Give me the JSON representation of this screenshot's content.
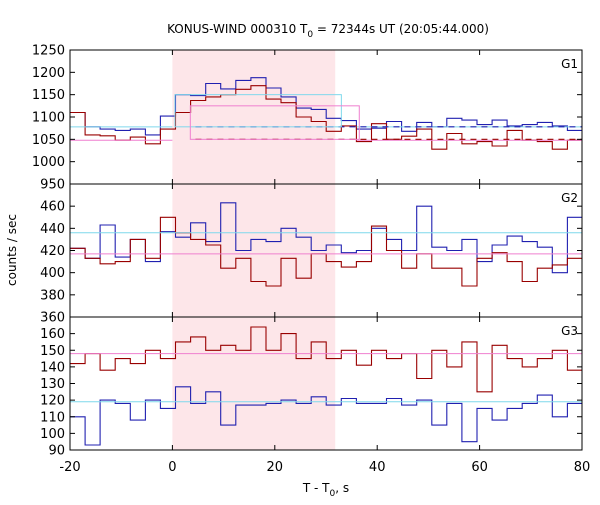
{
  "chart_data": {
    "type": "line",
    "title": "KONUS-WIND 000310 T",
    "title_sub": "0",
    "title_rest": " = 72344s UT (20:05:44.000)",
    "xlabel": "T - T",
    "xlabel_sub": "0",
    "xlabel_rest": ", s",
    "ylabel": "counts / sec",
    "xlim": [
      -20,
      80
    ],
    "x_ticks": [
      -20,
      0,
      20,
      40,
      60,
      80
    ],
    "bin_start": -20,
    "bin_width": 2.944,
    "shaded_interval": [
      0,
      31.8
    ],
    "colors": {
      "blue": "#2020b0",
      "red": "#990000",
      "cyan": "#7fd8ec",
      "pink": "#ef7fcf",
      "shade": "#fde6e9"
    },
    "panels": [
      {
        "label": "G1",
        "ylim": [
          950,
          1250
        ],
        "y_ticks": [
          950,
          1000,
          1050,
          1100,
          1150,
          1200,
          1250
        ],
        "series": [
          {
            "color": "blue",
            "values": [
              1110,
              1078,
              1073,
              1070,
              1073,
              1060,
              1102,
              1150,
              1148,
              1175,
              1163,
              1182,
              1188,
              1165,
              1145,
              1120,
              1117,
              1097,
              1092,
              1073,
              1075,
              1090,
              1068,
              1088,
              1078,
              1097,
              1093,
              1083,
              1093,
              1080,
              1083,
              1088,
              1080,
              1070,
              1063
            ]
          },
          {
            "color": "red",
            "values": [
              1110,
              1060,
              1058,
              1048,
              1055,
              1040,
              1073,
              1110,
              1137,
              1145,
              1150,
              1162,
              1170,
              1140,
              1132,
              1100,
              1090,
              1068,
              1080,
              1045,
              1085,
              1050,
              1057,
              1073,
              1028,
              1063,
              1040,
              1045,
              1035,
              1070,
              1048,
              1045,
              1028,
              1048,
              1045
            ]
          }
        ],
        "bg_fit": [
          {
            "color": "cyan",
            "x": [
              -20,
              0
            ],
            "y": 1078
          },
          {
            "color": "pink",
            "x": [
              -20,
              0
            ],
            "y": 1048
          },
          {
            "color": "cyan",
            "x": [
              36,
              80
            ],
            "y": 1078
          },
          {
            "color": "pink",
            "x": [
              36,
              80
            ],
            "y": 1048
          }
        ],
        "bg_dashed": [
          {
            "color": "blue",
            "x": [
              4.5,
              80
            ],
            "y": 1078
          },
          {
            "color": "red",
            "x": [
              4.5,
              80
            ],
            "y": 1050
          }
        ],
        "boxes": [
          {
            "color": "cyan",
            "x": [
              0.5,
              33
            ],
            "y": [
              1078,
              1150
            ]
          },
          {
            "color": "pink",
            "x": [
              3.5,
              36.5
            ],
            "y": [
              1050,
              1125
            ]
          }
        ]
      },
      {
        "label": "G2",
        "ylim": [
          360,
          480
        ],
        "y_ticks": [
          360,
          380,
          400,
          420,
          440,
          460
        ],
        "series": [
          {
            "color": "blue",
            "values": [
              422,
              413,
              443,
              414,
              430,
              410,
              437,
              432,
              445,
              428,
              463,
              420,
              430,
              428,
              440,
              432,
              420,
              425,
              418,
              420,
              440,
              430,
              420,
              460,
              423,
              420,
              430,
              410,
              425,
              433,
              428,
              423,
              400,
              450,
              425
            ]
          },
          {
            "color": "red",
            "values": [
              422,
              413,
              408,
              410,
              430,
              413,
              450,
              436,
              430,
              425,
              404,
              413,
              392,
              388,
              413,
              395,
              417,
              410,
              405,
              410,
              442,
              420,
              404,
              417,
              404,
              404,
              388,
              413,
              418,
              410,
              392,
              404,
              407,
              413,
              436
            ]
          }
        ],
        "fit_lines": [
          {
            "color": "cyan",
            "y": 436
          },
          {
            "color": "pink",
            "y": 417
          }
        ]
      },
      {
        "label": "G3",
        "ylim": [
          90,
          170
        ],
        "y_ticks": [
          90,
          100,
          110,
          120,
          130,
          140,
          150,
          160
        ],
        "series": [
          {
            "color": "blue",
            "values": [
              110,
              93,
              120,
              118,
              108,
              120,
              115,
              128,
              118,
              125,
              105,
              117,
              117,
              118,
              120,
              118,
              122,
              117,
              121,
              118,
              118,
              121,
              117,
              120,
              105,
              118,
              95,
              115,
              108,
              115,
              118,
              123,
              110,
              118,
              125
            ]
          },
          {
            "color": "red",
            "values": [
              142,
              148,
              138,
              145,
              142,
              150,
              145,
              155,
              158,
              150,
              153,
              150,
              164,
              150,
              160,
              145,
              155,
              145,
              150,
              141,
              150,
              145,
              148,
              133,
              150,
              140,
              155,
              125,
              153,
              145,
              140,
              145,
              150,
              138,
              148
            ]
          }
        ],
        "fit_lines": [
          {
            "color": "cyan",
            "y": 119
          },
          {
            "color": "pink",
            "y": 148
          }
        ]
      }
    ]
  }
}
